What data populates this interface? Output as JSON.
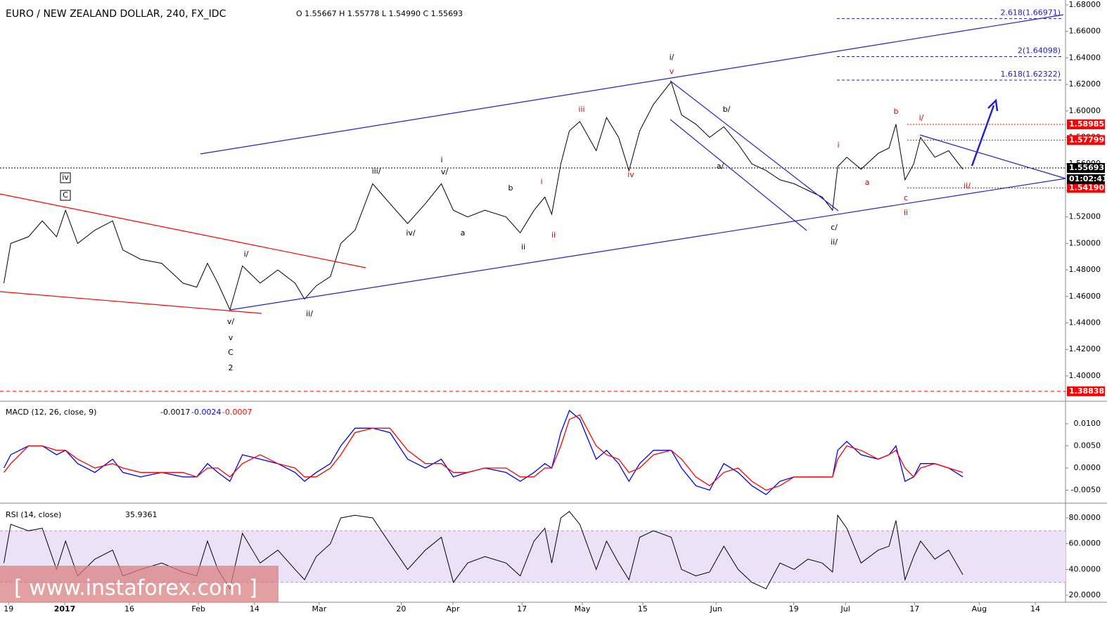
{
  "chart_data": [
    {
      "type": "line",
      "title": "EURO / NEW ZEALAND DOLLAR, 240, FX_IDC",
      "ohlc": "O 1.55667 H 1.55778 L 1.54990 C 1.55693",
      "color": "#000000",
      "x": [
        -1.1,
        0.5,
        4.6,
        7.8,
        11.1,
        13.2,
        16.0,
        20.0,
        24.1,
        26.5,
        30.6,
        35.5,
        40.4,
        43.6,
        46.1,
        48.5,
        51.3,
        54.2,
        58.3,
        62.4,
        66.4,
        68.6,
        71.3,
        74.6,
        77.0,
        80.3,
        84.4,
        88.4,
        92.5,
        96.6,
        100.3,
        103.1,
        106.4,
        110.4,
        115.3,
        118.6,
        121.8,
        124.3,
        125.9,
        128.0,
        130.0,
        132.4,
        136.2,
        138.6,
        141.4,
        143.8,
        146.3,
        149.5,
        153.6,
        156.0,
        159.3,
        162.5,
        165.8,
        169.1,
        172.3,
        175.6,
        178.8,
        182.1,
        185.3,
        188.6,
        191.0,
        192.2,
        194.3,
        197.6,
        201.6,
        204.1,
        205.7,
        207.8,
        209.8,
        211.4,
        214.7,
        217.9,
        221.2
      ],
      "values": [
        1.47,
        1.5,
        1.505,
        1.517,
        1.505,
        1.525,
        1.5,
        1.51,
        1.517,
        1.495,
        1.488,
        1.485,
        1.47,
        1.467,
        1.485,
        1.47,
        1.45,
        1.483,
        1.47,
        1.48,
        1.47,
        1.458,
        1.468,
        1.475,
        1.5,
        1.51,
        1.545,
        1.53,
        1.515,
        1.53,
        1.545,
        1.525,
        1.52,
        1.525,
        1.52,
        1.508,
        1.525,
        1.535,
        1.522,
        1.56,
        1.585,
        1.592,
        1.57,
        1.595,
        1.58,
        1.555,
        1.585,
        1.605,
        1.622,
        1.597,
        1.59,
        1.58,
        1.588,
        1.575,
        1.56,
        1.555,
        1.548,
        1.545,
        1.54,
        1.535,
        1.525,
        1.558,
        1.565,
        1.556,
        1.568,
        1.572,
        1.59,
        1.548,
        1.56,
        1.58,
        1.565,
        1.57,
        1.556
      ],
      "xlim": [
        -2,
        245
      ],
      "xticks": [
        {
          "value": 0,
          "label": "19"
        },
        {
          "value": 13,
          "label": "2017"
        },
        {
          "value": 28,
          "label": "16"
        },
        {
          "value": 44,
          "label": "Feb"
        },
        {
          "value": 57,
          "label": "14"
        },
        {
          "value": 72,
          "label": "Mar"
        },
        {
          "value": 91,
          "label": "20"
        },
        {
          "value": 103,
          "label": "Apr"
        },
        {
          "value": 119,
          "label": "17"
        },
        {
          "value": 133,
          "label": "May"
        },
        {
          "value": 147,
          "label": "15"
        },
        {
          "value": 164,
          "label": "Jun"
        },
        {
          "value": 182,
          "label": "19"
        },
        {
          "value": 194,
          "label": "Jul"
        },
        {
          "value": 210,
          "label": "17"
        },
        {
          "value": 225,
          "label": "Aug"
        },
        {
          "value": 238,
          "label": "14"
        }
      ],
      "ylim": [
        1.3814,
        1.6837
      ],
      "yticks": [
        {
          "value": 1.4,
          "label": "1.40000"
        },
        {
          "value": 1.42,
          "label": "1.42000"
        },
        {
          "value": 1.44,
          "label": "1.44000"
        },
        {
          "value": 1.46,
          "label": "1.46000"
        },
        {
          "value": 1.48,
          "label": "1.48000"
        },
        {
          "value": 1.5,
          "label": "1.50000"
        },
        {
          "value": 1.52,
          "label": "1.52000"
        },
        {
          "value": 1.54,
          "label": "1.54000"
        },
        {
          "value": 1.56,
          "label": "1.56000"
        },
        {
          "value": 1.58,
          "label": "1.58000"
        },
        {
          "value": 1.6,
          "label": "1.60000"
        },
        {
          "value": 1.62,
          "label": "1.62000"
        },
        {
          "value": 1.64,
          "label": "1.64000"
        },
        {
          "value": 1.66,
          "label": "1.66000"
        },
        {
          "value": 1.68,
          "label": "1.68000"
        }
      ],
      "levels": [
        {
          "value": 1.58985,
          "label": "1.58985",
          "color": "#ff0000"
        },
        {
          "value": 1.57799,
          "label": "1.57799",
          "color": "#ff0000"
        },
        {
          "value": 1.55693,
          "label": "1.55693",
          "color": "#000000"
        },
        {
          "value": 1.5419,
          "label": "1.54190",
          "color": "#ff0000"
        },
        {
          "value": 1.38838,
          "label": "1.38838",
          "color": "#ff0000"
        }
      ],
      "countdown": "01:02:41",
      "fib_levels": [
        {
          "value": 1.66971,
          "label": "2.618(1.66971)"
        },
        {
          "value": 1.64098,
          "label": "2(1.64098)"
        },
        {
          "value": 1.62322,
          "label": "1.618(1.62322)"
        }
      ],
      "annotations": [
        "iv",
        "C",
        "i/",
        "v/",
        "v",
        "C",
        "2",
        "ii/",
        "iii/",
        "i",
        "v/",
        "iv/",
        "a",
        "b",
        "ii",
        "i",
        "ii",
        "iii",
        "iv",
        "i/",
        "v",
        "b/",
        "a/",
        "c/",
        "ii/",
        "i",
        "a",
        "b",
        "i/",
        "c",
        "ii",
        "ii/"
      ],
      "watermark": "[ www.instaforex.com ]"
    },
    {
      "type": "line",
      "title": "MACD (12, 26, close, 9)",
      "readout": [
        "-0.0017",
        "-0.0024",
        "-0.0007"
      ],
      "x": [
        -1.1,
        0.5,
        4.6,
        7.8,
        11.1,
        13.2,
        16.0,
        20.0,
        24.1,
        26.5,
        30.6,
        35.5,
        40.4,
        43.6,
        46.1,
        48.5,
        51.3,
        54.2,
        58.3,
        62.4,
        66.4,
        68.6,
        71.3,
        74.6,
        77.0,
        80.3,
        84.4,
        88.4,
        92.5,
        96.6,
        100.3,
        103.1,
        106.4,
        110.4,
        115.3,
        118.6,
        121.8,
        124.3,
        125.9,
        128.0,
        130.0,
        132.4,
        136.2,
        138.6,
        141.4,
        143.8,
        146.3,
        149.5,
        153.6,
        156.0,
        159.3,
        162.5,
        165.8,
        169.1,
        172.3,
        175.6,
        178.8,
        182.1,
        185.3,
        188.6,
        191.0,
        192.2,
        194.3,
        197.6,
        201.6,
        204.1,
        205.7,
        207.8,
        209.8,
        211.4,
        214.7,
        217.9,
        221.2
      ],
      "series": [
        {
          "name": "MACD",
          "color": "#0000ff",
          "values": [
            0,
            0.003,
            0.005,
            0.005,
            0.003,
            0.004,
            0.001,
            -0.001,
            0.002,
            -0.001,
            -0.002,
            -0.001,
            -0.002,
            -0.002,
            0.001,
            -0.001,
            -0.003,
            0.003,
            0.002,
            0.001,
            -0.001,
            -0.003,
            -0.001,
            0.001,
            0.005,
            0.009,
            0.009,
            0.008,
            0.002,
            0,
            0.002,
            -0.002,
            -0.001,
            0,
            -0.001,
            -0.003,
            -0.001,
            0.001,
            0,
            0.008,
            0.013,
            0.011,
            0.002,
            0.004,
            0.001,
            -0.003,
            0.001,
            0.004,
            0.004,
            0,
            -0.004,
            -0.005,
            0.001,
            -0.001,
            -0.004,
            -0.006,
            -0.003,
            -0.002,
            -0.002,
            -0.002,
            -0.002,
            0.004,
            0.006,
            0.003,
            0.002,
            0.003,
            0.005,
            -0.003,
            -0.002,
            0.001,
            0.001,
            0,
            -0.002
          ]
        },
        {
          "name": "Signal",
          "color": "#ff0000",
          "values": [
            -0.001,
            0.001,
            0.005,
            0.005,
            0.004,
            0.004,
            0.002,
            0,
            0.001,
            0,
            -0.001,
            -0.001,
            -0.001,
            -0.002,
            0,
            0,
            -0.002,
            0.001,
            0.003,
            0.001,
            0,
            -0.002,
            -0.002,
            0,
            0.003,
            0.008,
            0.009,
            0.009,
            0.004,
            0.001,
            0.001,
            -0.001,
            -0.001,
            0,
            0,
            -0.002,
            -0.002,
            0,
            0,
            0.005,
            0.011,
            0.012,
            0.005,
            0.003,
            0.002,
            -0.001,
            0,
            0.003,
            0.004,
            0.002,
            -0.002,
            -0.004,
            -0.001,
            0,
            -0.003,
            -0.005,
            -0.004,
            -0.002,
            -0.002,
            -0.002,
            -0.002,
            0.002,
            0.005,
            0.004,
            0.002,
            0.003,
            0.004,
            0,
            -0.002,
            0,
            0.001,
            0,
            -0.001
          ]
        }
      ],
      "xlim": [
        -2,
        245
      ],
      "ylim": [
        -0.00778,
        0.01444
      ],
      "yticks": [
        {
          "value": 0.01,
          "label": "0.0100"
        },
        {
          "value": 0.005,
          "label": "0.0050"
        },
        {
          "value": 0,
          "label": "0.0000"
        },
        {
          "value": -0.005,
          "label": "-0.0050"
        }
      ]
    },
    {
      "type": "line",
      "title": "RSI (14, close)",
      "readout": "35.9361",
      "color": "#000000",
      "band": [
        30,
        70
      ],
      "x": [
        -1.1,
        0.5,
        4.6,
        7.8,
        11.1,
        13.2,
        16.0,
        20.0,
        24.1,
        26.5,
        30.6,
        35.5,
        40.4,
        43.6,
        46.1,
        48.5,
        51.3,
        54.2,
        58.3,
        62.4,
        66.4,
        68.6,
        71.3,
        74.6,
        77.0,
        80.3,
        84.4,
        88.4,
        92.5,
        96.6,
        100.3,
        103.1,
        106.4,
        110.4,
        115.3,
        118.6,
        121.8,
        124.3,
        125.9,
        128.0,
        130.0,
        132.4,
        136.2,
        138.6,
        141.4,
        143.8,
        146.3,
        149.5,
        153.6,
        156.0,
        159.3,
        162.5,
        165.8,
        169.1,
        172.3,
        175.6,
        178.8,
        182.1,
        185.3,
        188.6,
        191.0,
        192.2,
        194.3,
        197.6,
        201.6,
        204.1,
        205.7,
        207.8,
        209.8,
        211.4,
        214.7,
        217.9,
        221.2
      ],
      "values": [
        45,
        75,
        70,
        72,
        40,
        62,
        35,
        48,
        55,
        35,
        40,
        45,
        38,
        35,
        62,
        40,
        25,
        68,
        45,
        55,
        40,
        32,
        50,
        60,
        80,
        82,
        80,
        60,
        40,
        55,
        65,
        30,
        45,
        50,
        45,
        35,
        62,
        72,
        45,
        80,
        85,
        75,
        40,
        62,
        45,
        32,
        65,
        70,
        65,
        40,
        35,
        38,
        58,
        40,
        30,
        25,
        45,
        40,
        48,
        45,
        38,
        82,
        72,
        45,
        55,
        58,
        78,
        32,
        50,
        62,
        48,
        55,
        36
      ],
      "xlim": [
        -2,
        245
      ],
      "ylim": [
        15.64,
        89.27
      ],
      "yticks": [
        {
          "value": 80,
          "label": "80.0000"
        },
        {
          "value": 60,
          "label": "60.0000"
        },
        {
          "value": 40,
          "label": "40.0000"
        },
        {
          "value": 20,
          "label": "20.0000"
        }
      ]
    }
  ]
}
